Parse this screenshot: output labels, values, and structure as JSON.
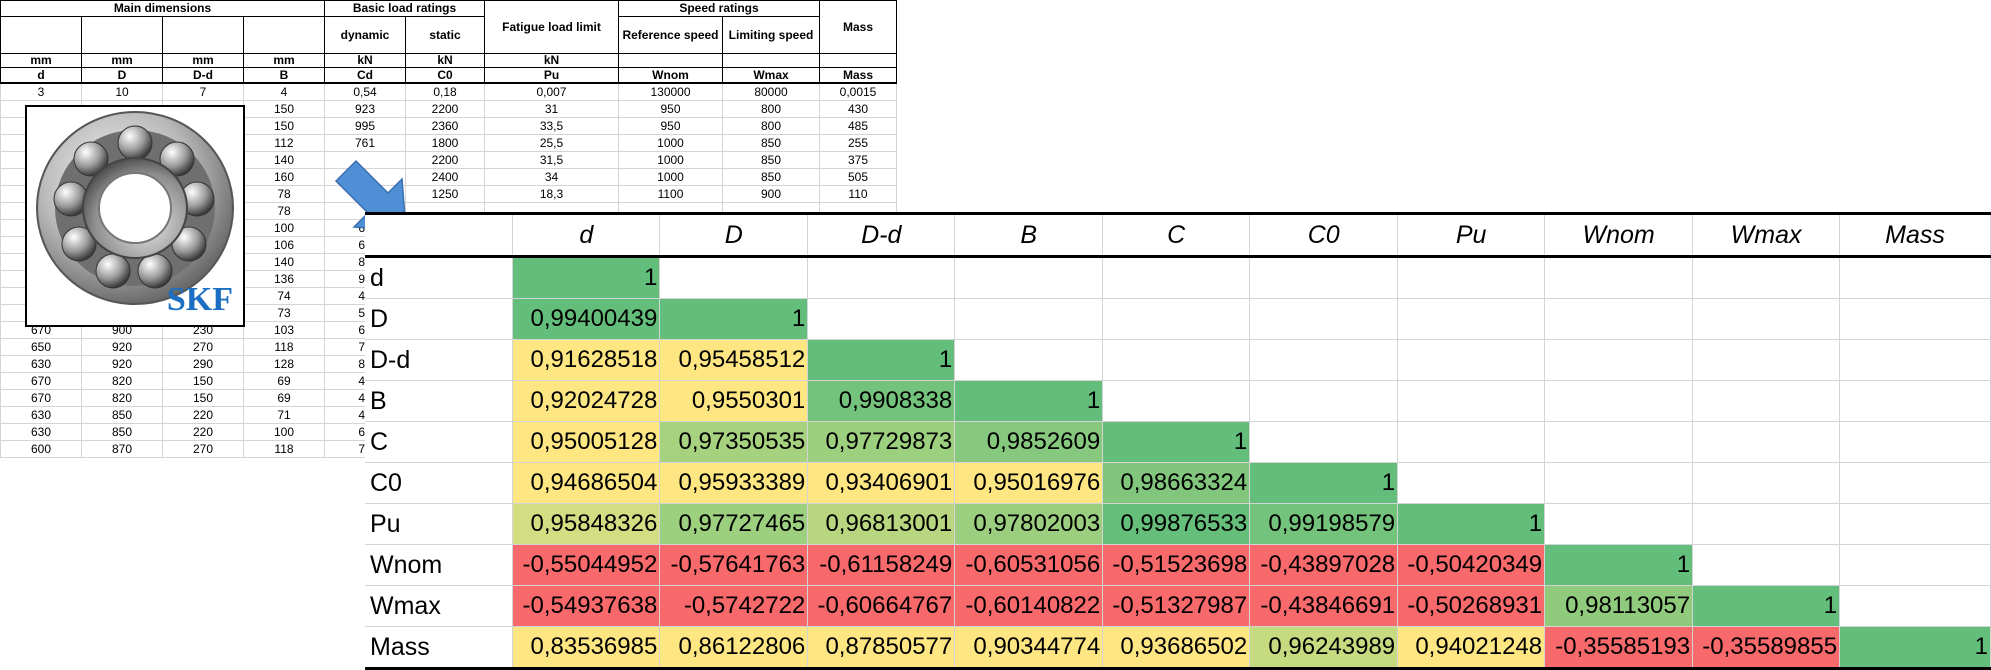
{
  "sheet": {
    "groups": {
      "main_dimensions": "Main dimensions",
      "basic_load_ratings": "Basic load ratings",
      "fatigue_load_limit": "Fatigue load limit",
      "speed_ratings": "Speed ratings",
      "mass": "Mass"
    },
    "subheaders": [
      "",
      "",
      "",
      "",
      "dynamic",
      "static",
      "",
      "Reference speed",
      "Limiting speed",
      ""
    ],
    "units": [
      "mm",
      "mm",
      "mm",
      "mm",
      "kN",
      "kN",
      "kN",
      "",
      "",
      ""
    ],
    "symbols": [
      "d",
      "D",
      "D-d",
      "B",
      "Cd",
      "C0",
      "Pu",
      "Wnom",
      "Wmax",
      "Mass"
    ],
    "rows": [
      [
        "3",
        "10",
        "7",
        "4",
        "0,54",
        "0,18",
        "0,007",
        "130000",
        "80000",
        "0,0015"
      ],
      [
        "",
        "",
        "",
        "150",
        "923",
        "2200",
        "31",
        "950",
        "800",
        "430"
      ],
      [
        "",
        "",
        "",
        "150",
        "995",
        "2360",
        "33,5",
        "950",
        "800",
        "485"
      ],
      [
        "",
        "",
        "",
        "112",
        "761",
        "1800",
        "25,5",
        "1000",
        "850",
        "255"
      ],
      [
        "",
        "",
        "",
        "140",
        "",
        "2200",
        "31,5",
        "1000",
        "850",
        "375"
      ],
      [
        "",
        "",
        "",
        "160",
        "",
        "2400",
        "34",
        "1000",
        "850",
        "505"
      ],
      [
        "",
        "",
        "",
        "78",
        "",
        "1250",
        "18,3",
        "1100",
        "900",
        "110"
      ],
      [
        "",
        "",
        "",
        "78",
        "",
        "",
        "",
        "",
        "",
        ""
      ],
      [
        "",
        "",
        "",
        "100",
        "65",
        "",
        "",
        "",
        "",
        ""
      ],
      [
        "",
        "",
        "",
        "106",
        "66",
        "",
        "",
        "",
        "",
        ""
      ],
      [
        "",
        "",
        "",
        "140",
        "83",
        "",
        "",
        "",
        "",
        ""
      ],
      [
        "",
        "",
        "",
        "136",
        "90",
        "",
        "",
        "",
        "",
        ""
      ],
      [
        "",
        "",
        "",
        "74",
        "47",
        "",
        "",
        "",
        "",
        ""
      ],
      [
        "",
        "",
        "",
        "73",
        "55",
        "",
        "",
        "",
        "",
        ""
      ],
      [
        "670",
        "900",
        "230",
        "103",
        "67",
        "",
        "",
        "",
        "",
        ""
      ],
      [
        "650",
        "920",
        "270",
        "118",
        "78",
        "",
        "",
        "",
        "",
        ""
      ],
      [
        "630",
        "920",
        "290",
        "128",
        "81",
        "",
        "",
        "",
        "",
        ""
      ],
      [
        "670",
        "820",
        "150",
        "69",
        "44",
        "",
        "",
        "",
        "",
        ""
      ],
      [
        "670",
        "820",
        "150",
        "69",
        "44",
        "",
        "",
        "",
        "",
        ""
      ],
      [
        "630",
        "850",
        "220",
        "71",
        "48",
        "",
        "",
        "",
        "",
        ""
      ],
      [
        "630",
        "850",
        "220",
        "100",
        "62",
        "",
        "",
        "",
        "",
        ""
      ],
      [
        "600",
        "870",
        "270",
        "118",
        "72",
        "",
        "",
        "",
        "",
        ""
      ]
    ]
  },
  "logo_text": "SKF",
  "colors": {
    "green": "#63be7b",
    "yellow": "#fee783",
    "red": "#f8696b",
    "logo_blue": "#1c6fc2",
    "arrow_blue": "#4f8fd6"
  },
  "matrix": {
    "columns": [
      "d",
      "D",
      "D-d",
      "B",
      "C",
      "C0",
      "Pu",
      "Wnom",
      "Wmax",
      "Mass"
    ],
    "rows": [
      {
        "label": "d",
        "values": [
          "1"
        ],
        "colors": [
          "#63be7b"
        ]
      },
      {
        "label": "D",
        "values": [
          "0,99400439",
          "1"
        ],
        "colors": [
          "#63be7b",
          "#63be7b"
        ]
      },
      {
        "label": "D-d",
        "values": [
          "0,91628518",
          "0,95458512",
          "1"
        ],
        "colors": [
          "#fee783",
          "#fee783",
          "#63be7b"
        ]
      },
      {
        "label": "B",
        "values": [
          "0,92024728",
          "0,9550301",
          "0,9908338",
          "1"
        ],
        "colors": [
          "#fee783",
          "#fee783",
          "#74c37c",
          "#63be7b"
        ]
      },
      {
        "label": "C",
        "values": [
          "0,95005128",
          "0,97350535",
          "0,97729873",
          "0,9852609",
          "1"
        ],
        "colors": [
          "#fee783",
          "#a6d17e",
          "#9ccf7e",
          "#86c87d",
          "#63be7b"
        ]
      },
      {
        "label": "C0",
        "values": [
          "0,94686504",
          "0,95933389",
          "0,93406901",
          "0,95016976",
          "0,98663324",
          "1"
        ],
        "colors": [
          "#fee783",
          "#fee783",
          "#fee783",
          "#fee783",
          "#81c67c",
          "#63be7b"
        ]
      },
      {
        "label": "Pu",
        "values": [
          "0,95848326",
          "0,97727465",
          "0,96813001",
          "0,97802003",
          "0,99876533",
          "0,99198579",
          "1"
        ],
        "colors": [
          "#d2de81",
          "#9ccf7e",
          "#b7d67f",
          "#9bce7e",
          "#65bf7b",
          "#73c37c",
          "#63be7b"
        ]
      },
      {
        "label": "Wnom",
        "values": [
          "-0,55044952",
          "-0,57641763",
          "-0,61158249",
          "-0,60531056",
          "-0,51523698",
          "-0,43897028",
          "-0,50420349",
          "1"
        ],
        "colors": [
          "#f8696b",
          "#f8696b",
          "#f8696b",
          "#f8696b",
          "#f8696b",
          "#f8696b",
          "#f8696b",
          "#63be7b"
        ]
      },
      {
        "label": "Wmax",
        "values": [
          "-0,54937638",
          "-0,5742722",
          "-0,60664767",
          "-0,60140822",
          "-0,51327987",
          "-0,43846691",
          "-0,50268931",
          "0,98113057",
          "1"
        ],
        "colors": [
          "#f8696b",
          "#f8696b",
          "#f8696b",
          "#f8696b",
          "#f8696b",
          "#f8696b",
          "#f8696b",
          "#90cb7d",
          "#63be7b"
        ]
      },
      {
        "label": "Mass",
        "values": [
          "0,83536985",
          "0,86122806",
          "0,87850577",
          "0,90344774",
          "0,93686502",
          "0,96243989",
          "0,94021248",
          "-0,35585193",
          "-0,35589855",
          "1"
        ],
        "colors": [
          "#fee783",
          "#fee783",
          "#fee783",
          "#fee783",
          "#fee783",
          "#c6da80",
          "#fee783",
          "#f8696b",
          "#f8696b",
          "#63be7b"
        ]
      }
    ]
  }
}
